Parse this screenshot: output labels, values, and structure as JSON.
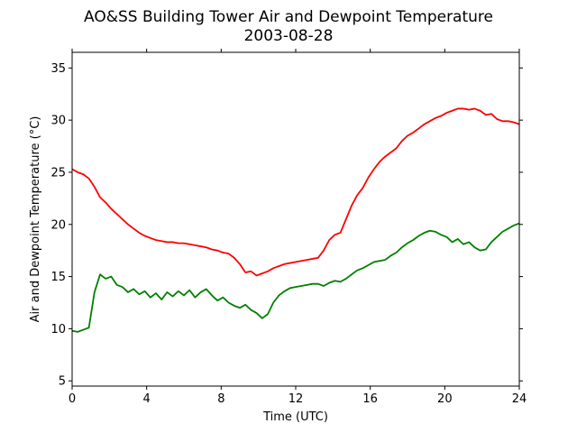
{
  "chart_data": {
    "type": "line",
    "title": "AO&SS Building Tower Air and Dewpoint Temperature",
    "subtitle": "2003-08-28",
    "xlabel": "Time (UTC)",
    "ylabel": "Air and Dewpoint Temperature (°C)",
    "xlim": [
      0,
      24
    ],
    "ylim": [
      4.5,
      36.5
    ],
    "xticks": [
      0,
      4,
      8,
      12,
      16,
      20,
      24
    ],
    "yticks": [
      5,
      10,
      15,
      20,
      25,
      30,
      35
    ],
    "grid": false,
    "series": [
      {
        "color": "#ff0000",
        "x": [
          0,
          0.3,
          0.6,
          0.9,
          1.2,
          1.5,
          1.8,
          2.1,
          2.4,
          2.7,
          3.0,
          3.3,
          3.6,
          3.9,
          4.2,
          4.5,
          4.8,
          5.1,
          5.4,
          5.7,
          6.0,
          6.3,
          6.6,
          6.9,
          7.2,
          7.5,
          7.8,
          8.1,
          8.4,
          8.7,
          9.0,
          9.3,
          9.6,
          9.9,
          10.2,
          10.5,
          10.8,
          11.1,
          11.4,
          11.7,
          12.0,
          12.3,
          12.6,
          12.9,
          13.2,
          13.5,
          13.8,
          14.1,
          14.4,
          14.7,
          15.0,
          15.3,
          15.6,
          15.9,
          16.2,
          16.5,
          16.8,
          17.1,
          17.4,
          17.7,
          18.0,
          18.3,
          18.6,
          18.9,
          19.2,
          19.5,
          19.8,
          20.1,
          20.4,
          20.7,
          21.0,
          21.3,
          21.6,
          21.9,
          22.2,
          22.5,
          22.8,
          23.1,
          23.4,
          23.7,
          24.0
        ],
        "values": [
          25.3,
          25.0,
          24.8,
          24.4,
          23.6,
          22.6,
          22.1,
          21.5,
          21.0,
          20.5,
          20.0,
          19.6,
          19.2,
          18.9,
          18.7,
          18.5,
          18.4,
          18.3,
          18.3,
          18.2,
          18.2,
          18.1,
          18.0,
          17.9,
          17.8,
          17.6,
          17.5,
          17.3,
          17.2,
          16.8,
          16.2,
          15.4,
          15.5,
          15.1,
          15.3,
          15.5,
          15.8,
          16.0,
          16.2,
          16.3,
          16.4,
          16.5,
          16.6,
          16.7,
          16.8,
          17.5,
          18.5,
          19.0,
          19.2,
          20.5,
          21.8,
          22.8,
          23.5,
          24.5,
          25.3,
          26.0,
          26.5,
          26.9,
          27.3,
          28.0,
          28.5,
          28.8,
          29.2,
          29.6,
          29.9,
          30.2,
          30.4,
          30.7,
          30.9,
          31.1,
          31.1,
          31.0,
          31.1,
          30.9,
          30.5,
          30.6,
          30.1,
          29.9,
          29.9,
          29.8,
          29.6
        ]
      },
      {
        "color": "#008000",
        "x": [
          0,
          0.3,
          0.6,
          0.9,
          1.2,
          1.5,
          1.8,
          2.1,
          2.4,
          2.7,
          3.0,
          3.3,
          3.6,
          3.9,
          4.2,
          4.5,
          4.8,
          5.1,
          5.4,
          5.7,
          6.0,
          6.3,
          6.6,
          6.9,
          7.2,
          7.5,
          7.8,
          8.1,
          8.4,
          8.7,
          9.0,
          9.3,
          9.6,
          9.9,
          10.2,
          10.5,
          10.8,
          11.1,
          11.4,
          11.7,
          12.0,
          12.3,
          12.6,
          12.9,
          13.2,
          13.5,
          13.8,
          14.1,
          14.4,
          14.7,
          15.0,
          15.3,
          15.6,
          15.9,
          16.2,
          16.5,
          16.8,
          17.1,
          17.4,
          17.7,
          18.0,
          18.3,
          18.6,
          18.9,
          19.2,
          19.5,
          19.8,
          20.1,
          20.4,
          20.7,
          21.0,
          21.3,
          21.6,
          21.9,
          22.2,
          22.5,
          22.8,
          23.1,
          23.4,
          23.7,
          24.0
        ],
        "values": [
          9.8,
          9.7,
          9.9,
          10.1,
          13.5,
          15.2,
          14.8,
          15.0,
          14.2,
          14.0,
          13.5,
          13.8,
          13.3,
          13.6,
          13.0,
          13.4,
          12.8,
          13.5,
          13.1,
          13.6,
          13.2,
          13.7,
          13.0,
          13.5,
          13.8,
          13.2,
          12.7,
          13.0,
          12.5,
          12.2,
          12.0,
          12.3,
          11.8,
          11.5,
          11.0,
          11.4,
          12.5,
          13.2,
          13.6,
          13.9,
          14.0,
          14.1,
          14.2,
          14.3,
          14.3,
          14.1,
          14.4,
          14.6,
          14.5,
          14.8,
          15.2,
          15.6,
          15.8,
          16.1,
          16.4,
          16.5,
          16.6,
          17.0,
          17.3,
          17.8,
          18.2,
          18.5,
          18.9,
          19.2,
          19.4,
          19.3,
          19.0,
          18.8,
          18.3,
          18.6,
          18.1,
          18.3,
          17.8,
          17.5,
          17.6,
          18.3,
          18.8,
          19.3,
          19.6,
          19.9,
          20.1
        ]
      }
    ]
  }
}
